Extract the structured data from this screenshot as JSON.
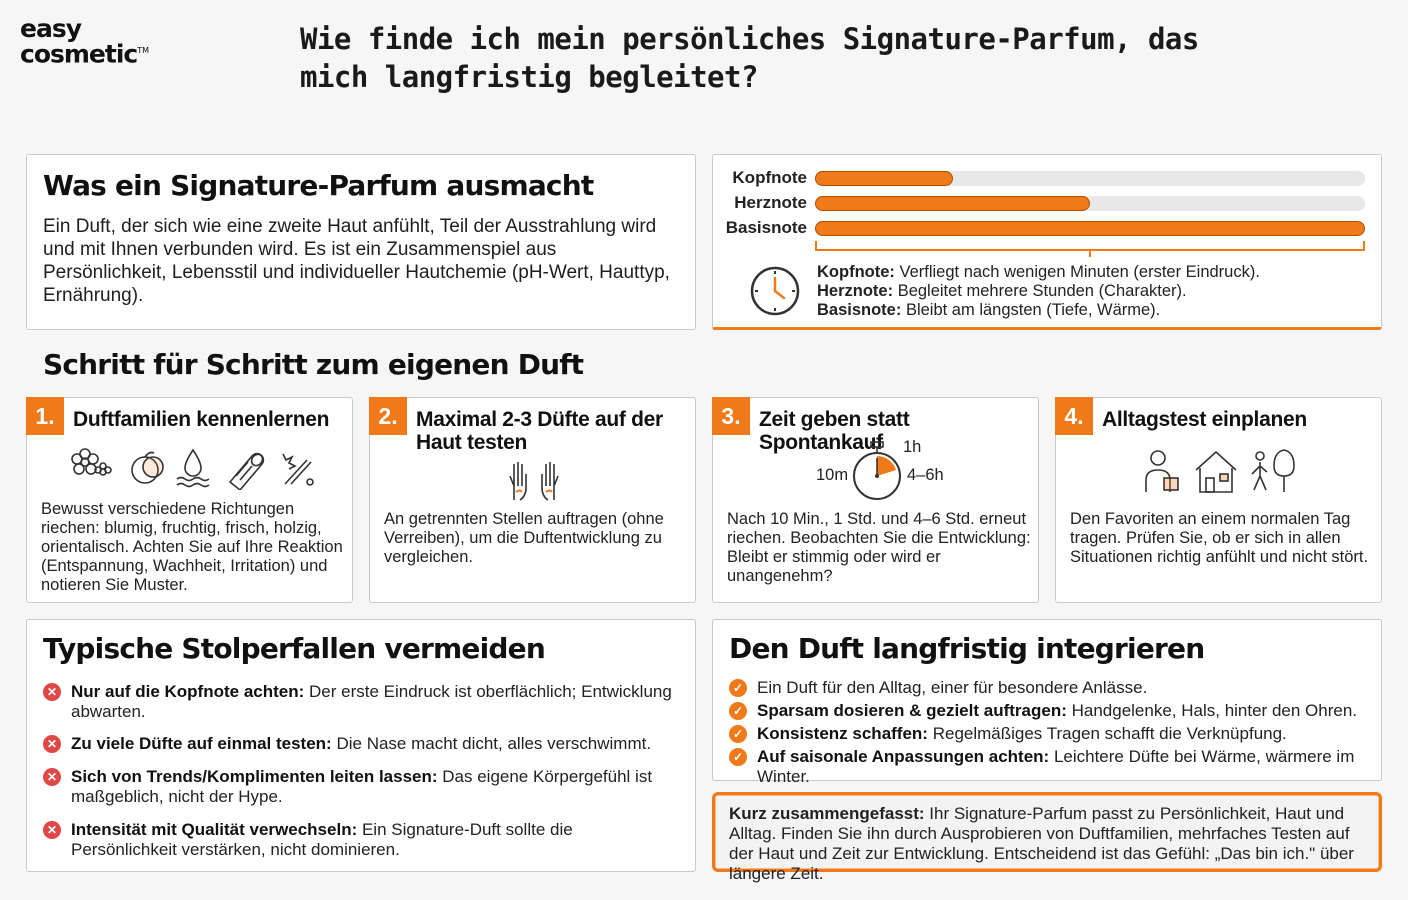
{
  "logo": {
    "line1": "easy",
    "line2": "cosmetic",
    "tm": "TM"
  },
  "page_title": "Wie finde ich mein persönliches Signature-Parfum, das mich langfristig begleitet?",
  "intro": {
    "title": "Was ein Signature-Parfum ausmacht",
    "text": "Ein Duft, der sich wie eine zweite Haut anfühlt, Teil der Ausstrahlung wird und mit Ihnen verbunden wird. Es ist ein Zusammenspiel aus Persönlichkeit, Lebensstil und individueller Hautchemie (pH-Wert, Hauttyp, Ernährung)."
  },
  "notes_chart": {
    "bars": [
      {
        "label": "Kopfnote",
        "value": 0.25
      },
      {
        "label": "Herznote",
        "value": 0.5
      },
      {
        "label": "Basisnote",
        "value": 1.0
      }
    ],
    "legend": [
      {
        "term": "Kopfnote:",
        "desc": "Verfliegt nach wenigen Minuten (erster Eindruck)."
      },
      {
        "term": "Herznote:",
        "desc": "Begleitet mehrere Stunden (Charakter)."
      },
      {
        "term": "Basisnote:",
        "desc": "Bleibt am längsten (Tiefe, Wärme)."
      }
    ],
    "accent_color": "#f07a1a"
  },
  "steps_heading": "Schritt für Schritt zum eigenen Duft",
  "steps": [
    {
      "num": "1.",
      "title": "Duftfamilien kennenlernen",
      "text": "Bewusst verschiedene Richtungen riechen: blumig, fruchtig, frisch, holzig, orientalisch. Achten Sie auf Ihre Reaktion (Entspannung, Wachheit, Irritation) und notieren Sie Muster."
    },
    {
      "num": "2.",
      "title": "Maximal 2-3 Düfte auf der Haut testen",
      "text": "An getrennten Stellen auftragen (ohne Verreiben), um die Duftentwicklung zu vergleichen."
    },
    {
      "num": "3.",
      "title": "Zeit geben statt Spontankauf",
      "text": "Nach 10 Min., 1 Std. und 4–6 Std. erneut riechen. Beobachten Sie die Entwicklung: Bleibt er stimmig oder wird er unangenehm?",
      "timer": {
        "top": "1h",
        "left": "10m",
        "right": "4–6h"
      }
    },
    {
      "num": "4.",
      "title": "Alltagstest einplanen",
      "text": "Den Favoriten an einem normalen Tag tragen. Prüfen Sie, ob er sich in allen Situationen richtig anfühlt und nicht stört."
    }
  ],
  "pitfalls": {
    "title": "Typische Stolperfallen vermeiden",
    "items": [
      {
        "term": "Nur auf die Kopfnote achten:",
        "desc": " Der erste Eindruck ist oberflächlich; Entwicklung abwarten."
      },
      {
        "term": "Zu viele Düfte auf einmal testen:",
        "desc": " Die Nase macht dicht, alles verschwimmt."
      },
      {
        "term": "Sich von Trends/Komplimenten leiten lassen:",
        "desc": " Das eigene Körpergefühl ist maßgeblich, nicht der Hype."
      },
      {
        "term": "Intensität mit Qualität verwechseln:",
        "desc": " Ein Signature-Duft sollte die Persönlichkeit verstärken, nicht dominieren."
      }
    ]
  },
  "integrate": {
    "title": "Den Duft langfristig integrieren",
    "items": [
      {
        "term": "",
        "desc": "Ein Duft für den Alltag, einer für besondere Anlässe."
      },
      {
        "term": "Sparsam dosieren & gezielt auftragen:",
        "desc": " Handgelenke, Hals, hinter den Ohren."
      },
      {
        "term": "Konsistenz schaffen:",
        "desc": " Regelmäßiges Tragen schafft die Verknüpfung."
      },
      {
        "term": "Auf saisonale Anpassungen achten:",
        "desc": " Leichtere Düfte bei Wärme, wärmere im Winter."
      }
    ]
  },
  "summary": {
    "term": "Kurz zusammengefasst:",
    "desc": " Ihr Signature-Parfum passt zu Persönlichkeit, Haut und Alltag. Finden Sie ihn durch Ausprobieren von Duftfamilien, mehrfaches Testen auf der Haut und Zeit zur Entwicklung. Entscheidend ist das Gefühl: „Das bin ich.\" über längere Zeit."
  }
}
